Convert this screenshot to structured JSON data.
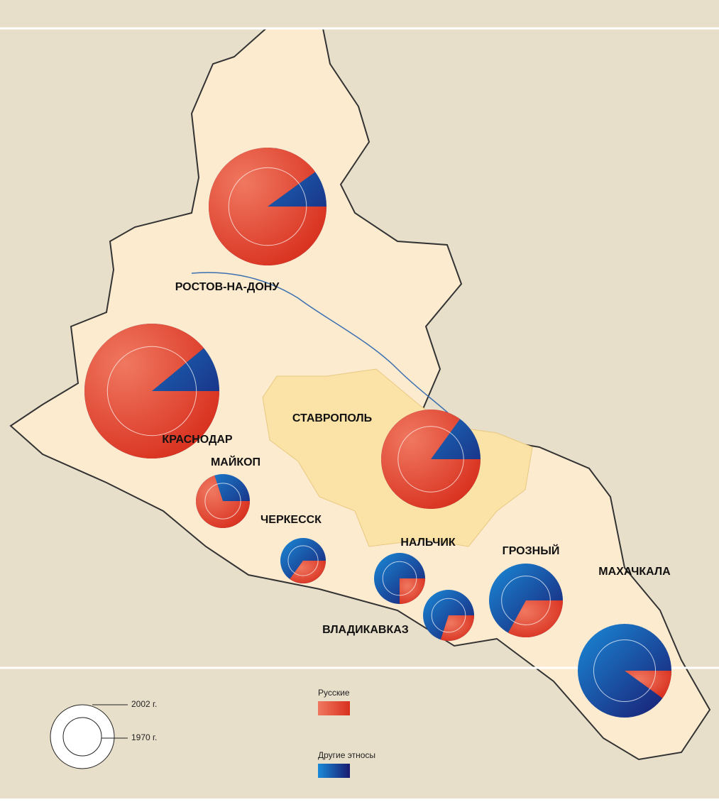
{
  "cities": [
    {
      "label": "РОСТОВ-НА-ДОНУ",
      "russian_share": 90
    },
    {
      "label": "КРАСНОДАР",
      "russian_share": 89
    },
    {
      "label": "СТАВРОПОЛЬ",
      "russian_share": 85
    },
    {
      "label": "МАЙКОП",
      "russian_share": 70
    },
    {
      "label": "ЧЕРКЕССК",
      "russian_share": 35
    },
    {
      "label": "НАЛЬЧИК",
      "russian_share": 25
    },
    {
      "label": "ВЛАДИКАВКАЗ",
      "russian_share": 30
    },
    {
      "label": "ГРОЗНЫЙ",
      "russian_share": 33
    },
    {
      "label": "МАХАЧКАЛА",
      "russian_share": 10
    }
  ],
  "legend": {
    "ring_outer": "2002 г.",
    "ring_inner": "1970 г.",
    "russians": "Русские",
    "others": "Другие этносы"
  }
}
